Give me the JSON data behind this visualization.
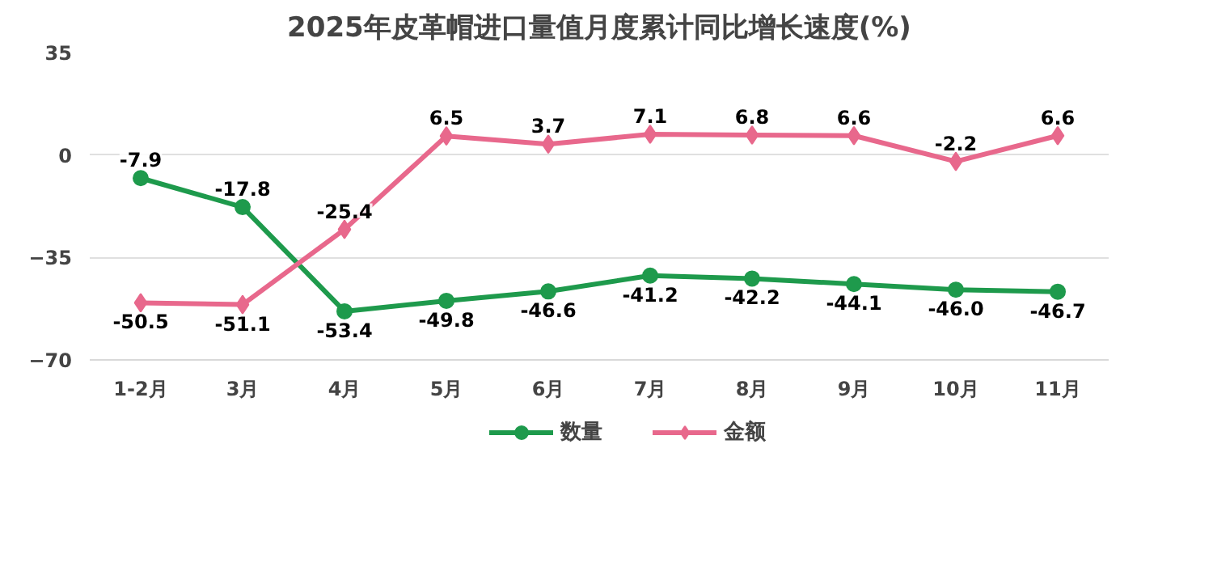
{
  "chart_data": {
    "type": "line",
    "title": "2025年皮革帽进口量值月度累计同比增长速度(%)",
    "categories": [
      "1-2月",
      "3月",
      "4月",
      "5月",
      "6月",
      "7月",
      "8月",
      "9月",
      "10月",
      "11月"
    ],
    "series": [
      {
        "name": "数量",
        "color": "#1e9a4c",
        "marker": "circle",
        "values": [
          -7.9,
          -17.8,
          -53.4,
          -49.8,
          -46.6,
          -41.2,
          -42.2,
          -44.1,
          -46.0,
          -46.7
        ],
        "value_labels": [
          "-7.9",
          "-17.8",
          "-53.4",
          "-49.8",
          "-46.6",
          "-41.2",
          "-42.2",
          "-44.1",
          "-46.0",
          "-46.7"
        ]
      },
      {
        "name": "金额",
        "color": "#e8688c",
        "marker": "diamond",
        "values": [
          -50.5,
          -51.1,
          -25.4,
          6.5,
          3.7,
          7.1,
          6.8,
          6.6,
          -2.2,
          6.6
        ],
        "value_labels": [
          "-50.5",
          "-51.1",
          "-25.4",
          "6.5",
          "3.7",
          "7.1",
          "6.8",
          "6.6",
          "-2.2",
          "6.6"
        ]
      }
    ],
    "ylim": [
      -70,
      35
    ],
    "yticks": [
      -70,
      -35,
      0,
      35
    ],
    "grid": "y",
    "legend": "bottom",
    "data_labels": true,
    "line_style": "solid"
  }
}
